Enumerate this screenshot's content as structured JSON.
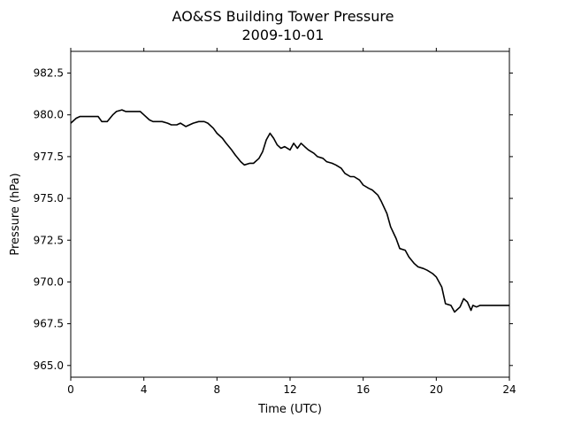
{
  "chart_data": {
    "type": "line",
    "title": "AO&SS Building Tower Pressure",
    "subtitle": "2009-10-01",
    "xlabel": "Time (UTC)",
    "ylabel": "Pressure (hPa)",
    "xlim": [
      0,
      24
    ],
    "ylim": [
      964.3,
      983.8
    ],
    "xticks": [
      0,
      4,
      8,
      12,
      16,
      20,
      24
    ],
    "xtick_labels": [
      "0",
      "4",
      "8",
      "12",
      "16",
      "20",
      "24"
    ],
    "yticks": [
      965.0,
      967.5,
      970.0,
      972.5,
      975.0,
      977.5,
      980.0,
      982.5
    ],
    "ytick_labels": [
      "965.0",
      "967.5",
      "970.0",
      "972.5",
      "975.0",
      "977.5",
      "980.0",
      "982.5"
    ],
    "grid": false,
    "line_color": "#000000",
    "series": [
      {
        "x": [
          0.0,
          0.3,
          0.5,
          0.8,
          1.0,
          1.3,
          1.5,
          1.7,
          2.0,
          2.3,
          2.5,
          2.8,
          3.0,
          3.3,
          3.5,
          3.8,
          4.0,
          4.3,
          4.5,
          4.7,
          5.0,
          5.3,
          5.5,
          5.8,
          6.0,
          6.3,
          6.5,
          6.7,
          7.0,
          7.3,
          7.5,
          7.8,
          8.0,
          8.3,
          8.5,
          8.8,
          9.0,
          9.3,
          9.5,
          9.8,
          10.0,
          10.3,
          10.5,
          10.7,
          10.9,
          11.1,
          11.3,
          11.5,
          11.7,
          12.0,
          12.2,
          12.4,
          12.6,
          12.8,
          13.0,
          13.3,
          13.5,
          13.8,
          14.0,
          14.3,
          14.5,
          14.8,
          15.0,
          15.3,
          15.5,
          15.8,
          16.0,
          16.3,
          16.5,
          16.8,
          17.0,
          17.3,
          17.5,
          17.8,
          18.0,
          18.3,
          18.5,
          18.8,
          19.0,
          19.3,
          19.5,
          19.8,
          20.0,
          20.3,
          20.5,
          20.8,
          21.0,
          21.3,
          21.5,
          21.7,
          21.9,
          22.0,
          22.2,
          22.4,
          22.6,
          22.8,
          23.0,
          23.2,
          23.4,
          23.6,
          23.8,
          24.0
        ],
        "y": [
          979.5,
          979.8,
          979.9,
          979.9,
          979.9,
          979.9,
          979.9,
          979.6,
          979.6,
          980.0,
          980.2,
          980.3,
          980.2,
          980.2,
          980.2,
          980.2,
          980.0,
          979.7,
          979.6,
          979.6,
          979.6,
          979.5,
          979.4,
          979.4,
          979.5,
          979.3,
          979.4,
          979.5,
          979.6,
          979.6,
          979.5,
          979.2,
          978.9,
          978.6,
          978.3,
          977.9,
          977.6,
          977.2,
          977.0,
          977.1,
          977.1,
          977.4,
          977.8,
          978.5,
          978.9,
          978.6,
          978.2,
          978.0,
          978.1,
          977.9,
          978.3,
          978.0,
          978.3,
          978.1,
          977.9,
          977.7,
          977.5,
          977.4,
          977.2,
          977.1,
          977.0,
          976.8,
          976.5,
          976.3,
          976.3,
          976.1,
          975.8,
          975.6,
          975.5,
          975.2,
          974.8,
          974.1,
          973.3,
          972.6,
          972.0,
          971.9,
          971.5,
          971.1,
          970.9,
          970.8,
          970.7,
          970.5,
          970.3,
          969.7,
          968.7,
          968.6,
          968.2,
          968.5,
          969.0,
          968.8,
          968.3,
          968.6,
          968.5,
          968.6,
          968.6,
          968.6,
          968.6,
          968.6,
          968.6,
          968.6,
          968.6,
          968.6
        ]
      }
    ]
  }
}
